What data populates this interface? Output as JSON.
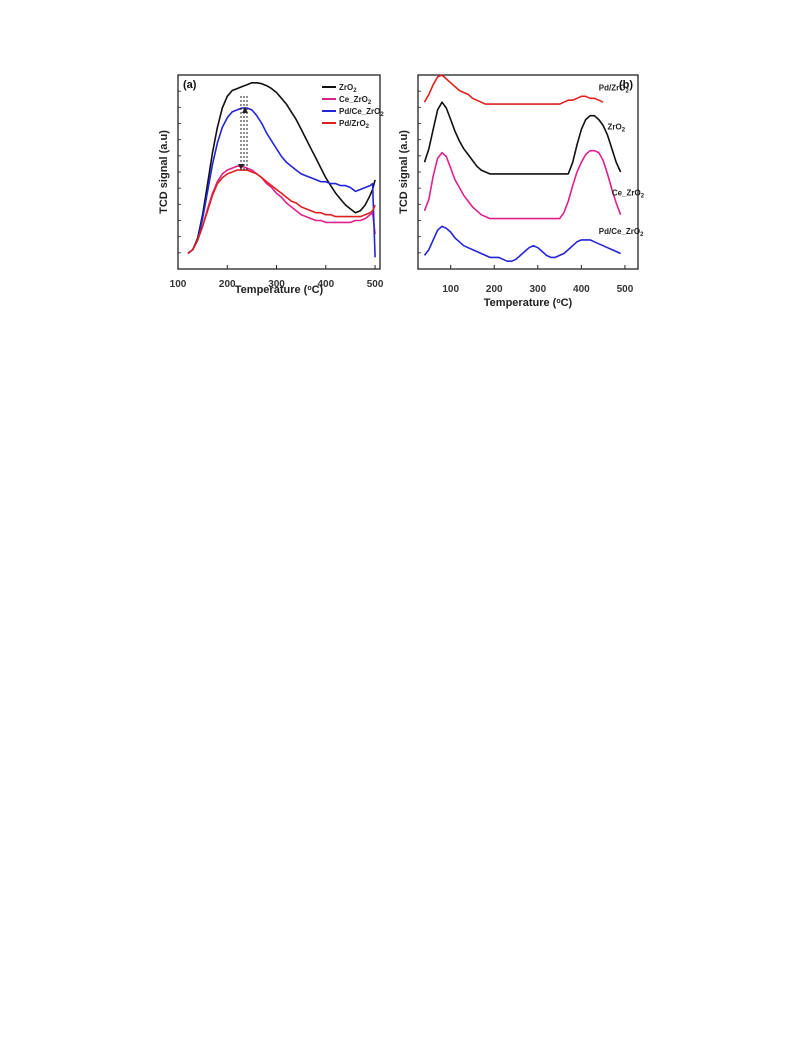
{
  "chart_data": [
    {
      "type": "line",
      "panel_label": "(a)",
      "xlabel": "Temperature (°C)",
      "ylabel": "TCD signal (a.u)",
      "xlim": [
        100,
        510
      ],
      "ylim": [
        0,
        1
      ],
      "x_ticks": [
        100,
        200,
        300,
        400,
        500
      ],
      "legend_position": "top-right",
      "series": [
        {
          "name": "ZrO2",
          "name_main": "ZrO",
          "name_sub": "2",
          "color": "#111111",
          "x": [
            120,
            130,
            140,
            150,
            160,
            170,
            180,
            190,
            200,
            210,
            220,
            230,
            240,
            250,
            260,
            270,
            280,
            290,
            300,
            310,
            320,
            330,
            340,
            350,
            360,
            370,
            380,
            390,
            400,
            410,
            420,
            430,
            440,
            450,
            460,
            470,
            480,
            490,
            495,
            500
          ],
          "y": [
            0.08,
            0.1,
            0.16,
            0.28,
            0.44,
            0.6,
            0.73,
            0.83,
            0.89,
            0.92,
            0.93,
            0.94,
            0.95,
            0.96,
            0.96,
            0.955,
            0.945,
            0.93,
            0.91,
            0.88,
            0.85,
            0.81,
            0.77,
            0.72,
            0.67,
            0.62,
            0.57,
            0.52,
            0.47,
            0.43,
            0.39,
            0.36,
            0.33,
            0.31,
            0.29,
            0.3,
            0.33,
            0.38,
            0.41,
            0.46
          ]
        },
        {
          "name": "Ce_ZrO2",
          "name_main": "Ce_ZrO",
          "name_sub": "2",
          "color": "#e0208c",
          "x": [
            120,
            130,
            140,
            150,
            160,
            170,
            180,
            190,
            200,
            210,
            220,
            230,
            240,
            250,
            260,
            270,
            280,
            290,
            300,
            310,
            320,
            330,
            340,
            350,
            360,
            370,
            380,
            390,
            400,
            410,
            420,
            430,
            440,
            450,
            460,
            470,
            480,
            490,
            495,
            500
          ],
          "y": [
            0.08,
            0.1,
            0.15,
            0.22,
            0.31,
            0.39,
            0.45,
            0.49,
            0.51,
            0.52,
            0.53,
            0.53,
            0.52,
            0.51,
            0.49,
            0.47,
            0.44,
            0.42,
            0.39,
            0.37,
            0.34,
            0.32,
            0.3,
            0.28,
            0.27,
            0.26,
            0.25,
            0.25,
            0.24,
            0.24,
            0.24,
            0.24,
            0.24,
            0.24,
            0.25,
            0.25,
            0.26,
            0.28,
            0.29,
            0.18
          ]
        },
        {
          "name": "Pd/Ce_ZrO2",
          "name_main": "Pd/Ce_ZrO",
          "name_sub": "2",
          "color": "#2424d8",
          "x": [
            120,
            130,
            140,
            150,
            160,
            170,
            180,
            190,
            200,
            210,
            220,
            230,
            240,
            250,
            260,
            270,
            280,
            290,
            300,
            310,
            320,
            330,
            340,
            350,
            360,
            370,
            380,
            390,
            400,
            410,
            420,
            430,
            440,
            450,
            460,
            470,
            480,
            490,
            495,
            500
          ],
          "y": [
            0.08,
            0.1,
            0.15,
            0.26,
            0.4,
            0.54,
            0.65,
            0.73,
            0.78,
            0.81,
            0.82,
            0.83,
            0.83,
            0.82,
            0.79,
            0.75,
            0.7,
            0.66,
            0.62,
            0.58,
            0.55,
            0.53,
            0.51,
            0.49,
            0.48,
            0.47,
            0.46,
            0.45,
            0.45,
            0.44,
            0.44,
            0.43,
            0.43,
            0.42,
            0.4,
            0.41,
            0.42,
            0.43,
            0.44,
            0.06
          ]
        },
        {
          "name": "Pd/ZrO2",
          "name_main": "Pd/ZrO",
          "name_sub": "2",
          "color": "#e02020",
          "x": [
            120,
            130,
            140,
            150,
            160,
            170,
            180,
            190,
            200,
            210,
            220,
            230,
            240,
            250,
            260,
            270,
            280,
            290,
            300,
            310,
            320,
            330,
            340,
            350,
            360,
            370,
            380,
            390,
            400,
            410,
            420,
            430,
            440,
            450,
            460,
            470,
            480,
            490,
            495,
            500
          ],
          "y": [
            0.08,
            0.1,
            0.15,
            0.22,
            0.3,
            0.38,
            0.44,
            0.47,
            0.49,
            0.5,
            0.51,
            0.51,
            0.51,
            0.5,
            0.49,
            0.47,
            0.45,
            0.43,
            0.41,
            0.39,
            0.37,
            0.35,
            0.34,
            0.32,
            0.31,
            0.3,
            0.29,
            0.29,
            0.28,
            0.28,
            0.27,
            0.27,
            0.27,
            0.27,
            0.27,
            0.27,
            0.28,
            0.29,
            0.3,
            0.33
          ]
        }
      ]
    },
    {
      "type": "line",
      "panel_label": "(b)",
      "xlabel": "Temperature (°C)",
      "ylabel": "TCD signal (a.u)",
      "xlim": [
        25,
        530
      ],
      "ylim": [
        0,
        1
      ],
      "x_ticks": [
        100,
        200,
        300,
        400,
        500
      ],
      "series": [
        {
          "name": "Pd/ZrO2",
          "name_main": "Pd/ZrO",
          "name_sub": "2",
          "color": "#e02020",
          "x": [
            40,
            50,
            60,
            70,
            80,
            90,
            100,
            110,
            120,
            130,
            140,
            150,
            160,
            170,
            180,
            200,
            250,
            300,
            350,
            360,
            370,
            380,
            390,
            400,
            410,
            420,
            430,
            440,
            450
          ],
          "y": [
            0.86,
            0.9,
            0.95,
            0.99,
            1.0,
            0.98,
            0.96,
            0.94,
            0.92,
            0.91,
            0.9,
            0.88,
            0.87,
            0.86,
            0.85,
            0.85,
            0.85,
            0.85,
            0.85,
            0.86,
            0.87,
            0.87,
            0.88,
            0.89,
            0.89,
            0.88,
            0.88,
            0.87,
            0.86
          ]
        },
        {
          "name": "ZrO2",
          "name_main": "ZrO",
          "name_sub": "2",
          "color": "#111111",
          "x": [
            40,
            50,
            60,
            70,
            80,
            90,
            100,
            110,
            120,
            130,
            140,
            150,
            160,
            170,
            180,
            190,
            200,
            250,
            300,
            350,
            370,
            380,
            390,
            400,
            410,
            420,
            430,
            440,
            450,
            460,
            470,
            480,
            490
          ],
          "y": [
            0.55,
            0.62,
            0.72,
            0.82,
            0.86,
            0.83,
            0.77,
            0.71,
            0.66,
            0.62,
            0.59,
            0.56,
            0.53,
            0.51,
            0.5,
            0.49,
            0.49,
            0.49,
            0.49,
            0.49,
            0.49,
            0.55,
            0.64,
            0.72,
            0.77,
            0.79,
            0.79,
            0.77,
            0.74,
            0.69,
            0.62,
            0.55,
            0.5
          ]
        },
        {
          "name": "Ce_ZrO2",
          "name_main": "Ce_ZrO",
          "name_sub": "2",
          "color": "#e0208c",
          "x": [
            40,
            50,
            60,
            70,
            80,
            90,
            100,
            110,
            120,
            130,
            140,
            150,
            160,
            170,
            180,
            190,
            200,
            250,
            300,
            350,
            360,
            370,
            380,
            390,
            400,
            410,
            420,
            430,
            440,
            450,
            460,
            470,
            480,
            490
          ],
          "y": [
            0.3,
            0.36,
            0.48,
            0.57,
            0.6,
            0.58,
            0.52,
            0.46,
            0.42,
            0.38,
            0.35,
            0.32,
            0.3,
            0.28,
            0.27,
            0.26,
            0.26,
            0.26,
            0.26,
            0.26,
            0.29,
            0.35,
            0.43,
            0.5,
            0.55,
            0.59,
            0.61,
            0.61,
            0.6,
            0.56,
            0.49,
            0.41,
            0.34,
            0.28
          ]
        },
        {
          "name": "Pd/Ce_ZrO2",
          "name_main": "Pd/Ce_ZrO",
          "name_sub": "2",
          "color": "#2424d8",
          "x": [
            40,
            50,
            60,
            70,
            80,
            90,
            100,
            110,
            120,
            130,
            140,
            150,
            160,
            170,
            180,
            190,
            200,
            210,
            220,
            230,
            240,
            250,
            260,
            270,
            280,
            290,
            300,
            310,
            320,
            330,
            340,
            350,
            360,
            370,
            380,
            390,
            400,
            410,
            420,
            430,
            440,
            450,
            460,
            470,
            480,
            490
          ],
          "y": [
            0.07,
            0.1,
            0.15,
            0.2,
            0.22,
            0.21,
            0.19,
            0.16,
            0.14,
            0.12,
            0.11,
            0.1,
            0.09,
            0.08,
            0.07,
            0.06,
            0.06,
            0.06,
            0.05,
            0.04,
            0.04,
            0.05,
            0.07,
            0.09,
            0.11,
            0.12,
            0.11,
            0.09,
            0.07,
            0.06,
            0.06,
            0.07,
            0.08,
            0.1,
            0.12,
            0.14,
            0.15,
            0.15,
            0.15,
            0.14,
            0.13,
            0.12,
            0.11,
            0.1,
            0.09,
            0.08
          ]
        }
      ],
      "curve_labels": [
        {
          "series": 0,
          "x": 440,
          "y": 0.92
        },
        {
          "series": 1,
          "x": 460,
          "y": 0.72
        },
        {
          "series": 2,
          "x": 470,
          "y": 0.38
        },
        {
          "series": 3,
          "x": 440,
          "y": 0.18
        }
      ]
    }
  ]
}
